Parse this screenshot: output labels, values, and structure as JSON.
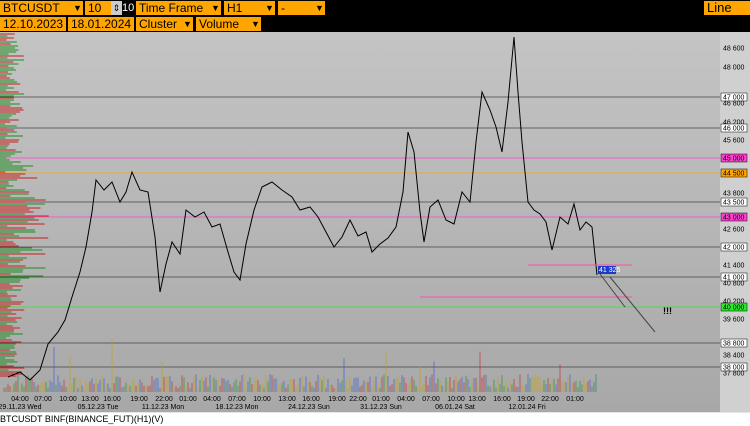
{
  "toolbar": {
    "symbol": "BTCUSDT BIN",
    "count": "10",
    "count_box": "10",
    "timeframe_label": "Time Frame",
    "timeframe": "H1",
    "extra": "-",
    "mode": "Line",
    "date_from": "12.10.2023",
    "date_to": "18.01.2024",
    "chart_style": "Cluster",
    "indicator": "Volume"
  },
  "price_axis": [
    {
      "label": "48 600"
    },
    {
      "label": "48 000"
    },
    {
      "label": "47 000",
      "level": true,
      "color": "#ffffff"
    },
    {
      "label": "46 800"
    },
    {
      "label": "46 200"
    },
    {
      "label": "46 000",
      "level": true,
      "color": "#ffffff"
    },
    {
      "label": "45 600"
    },
    {
      "label": "45 000",
      "level": true,
      "color": "#ff3fd0"
    },
    {
      "label": "44 500",
      "level": true,
      "color": "#ffa500"
    },
    {
      "label": "43 800"
    },
    {
      "label": "43 500",
      "level": true,
      "color": "#ffffff"
    },
    {
      "label": "43 000",
      "level": true,
      "color": "#ff3fd0"
    },
    {
      "label": "42 600"
    },
    {
      "label": "42 000",
      "level": true,
      "color": "#ffffff"
    },
    {
      "label": "41 400"
    },
    {
      "label": "41 000",
      "level": true,
      "color": "#ffffff"
    },
    {
      "label": "40 800"
    },
    {
      "label": "40 200"
    },
    {
      "label": "40 000",
      "level": true,
      "color": "#2ee82e"
    },
    {
      "label": "39 600"
    },
    {
      "label": "38 800",
      "level": true,
      "color": "#ffffff"
    },
    {
      "label": "38 400"
    },
    {
      "label": "38 000",
      "level": true,
      "color": "#ffffff"
    },
    {
      "label": "37 800"
    }
  ],
  "current_price": "41 325",
  "marker": "!!!",
  "time_labels": [
    "04:00",
    "07:00",
    "10:00",
    "13:00",
    "16:00",
    "19:00",
    "22:00",
    "01:00",
    "04:00",
    "07:00",
    "10:00",
    "13:00",
    "16:00",
    "19:00",
    "22:00",
    "01:00",
    "04:00",
    "07:00",
    "10:00",
    "13:00",
    "16:00",
    "19:00",
    "22:00",
    "01:00"
  ],
  "date_labels": [
    "29.11.23 Wed",
    "05.12.23 Tue",
    "11.12.23 Mon",
    "18.12.23 Mon",
    "24.12.23 Sun",
    "31.12.23 Sun",
    "06.01.24 Sat",
    "12.01.24 Fri"
  ],
  "footer": "BTCUSDT BINF(BINANCE_FUT)(H1)(V)"
}
